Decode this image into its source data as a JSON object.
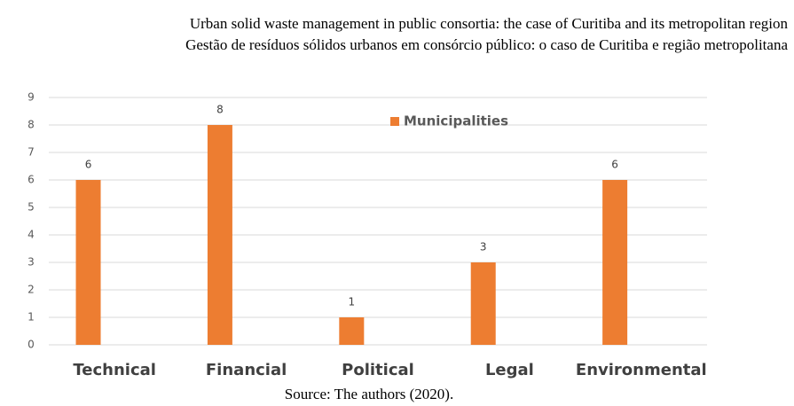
{
  "chart_data": {
    "type": "bar",
    "title": "Urban solid waste management in public consortia: the case of Curitiba and its metropolitan region",
    "subtitle": "Gestão de resíduos sólidos urbanos em consórcio público: o caso de Curitiba e região metropolitana",
    "source": "Source: The authors (2020).",
    "categories": [
      "Technical",
      "Financial",
      "Political",
      "Legal",
      "Environmental"
    ],
    "series": [
      {
        "name": "Municipalities",
        "color": "#ed7d31",
        "values": [
          6,
          8,
          1,
          3,
          6
        ]
      }
    ],
    "ylim": [
      0,
      9
    ],
    "yticks": [
      0,
      1,
      2,
      3,
      4,
      5,
      6,
      7,
      8,
      9
    ],
    "grid": true,
    "legend": "top"
  }
}
